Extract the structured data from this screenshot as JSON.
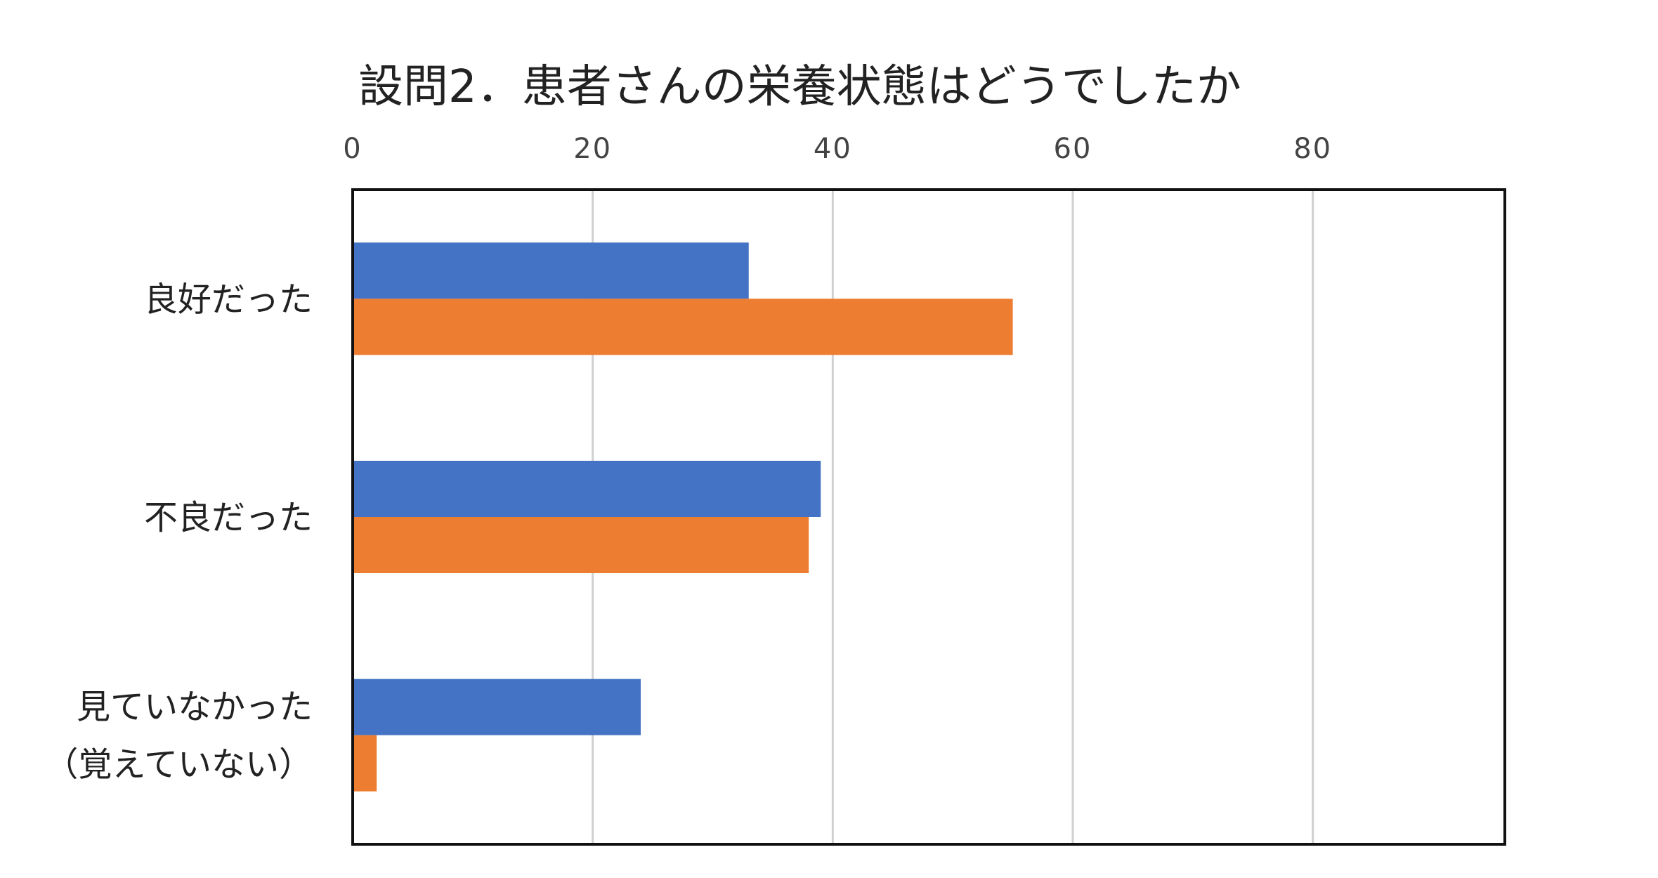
{
  "chart_data": {
    "type": "bar",
    "orientation": "horizontal",
    "title": "設問2．患者さんの栄養状態はどうでしたか",
    "categories": [
      [
        "良好だった"
      ],
      [
        "不良だった"
      ],
      [
        "見ていなかった",
        "（覚えていない）"
      ]
    ],
    "series": [
      {
        "values": [
          33,
          39,
          24
        ],
        "color": "#4472C4"
      },
      {
        "values": [
          55,
          38,
          2
        ],
        "color": "#ED7D31"
      }
    ],
    "x_ticks": [
      "0",
      "20",
      "40",
      "60",
      "80"
    ],
    "xlim": [
      0,
      96
    ],
    "x_axis_position": "top",
    "grid": true,
    "legend": "none"
  }
}
